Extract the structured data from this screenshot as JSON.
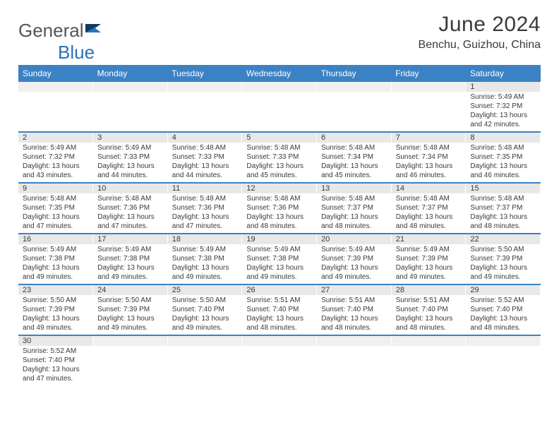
{
  "brand": {
    "text1": "General",
    "text2": "Blue"
  },
  "title": "June 2024",
  "subtitle": "Benchu, Guizhou, China",
  "header_bg": "#3b82c4",
  "header_text_color": "#ffffff",
  "numrow_bg": "#e8e8e8",
  "divider_color": "#3b82c4",
  "text_color": "#3a3a3a",
  "cell_fontsize": 10,
  "daynum_fontsize": 11,
  "header_fontsize": 12,
  "title_fontsize": 30,
  "subtitle_fontsize": 16,
  "columns": [
    "Sunday",
    "Monday",
    "Tuesday",
    "Wednesday",
    "Thursday",
    "Friday",
    "Saturday"
  ],
  "weeks": [
    [
      null,
      null,
      null,
      null,
      null,
      null,
      {
        "n": "1",
        "sr": "5:49 AM",
        "ss": "7:32 PM",
        "dl": "13 hours and 42 minutes."
      }
    ],
    [
      {
        "n": "2",
        "sr": "5:49 AM",
        "ss": "7:32 PM",
        "dl": "13 hours and 43 minutes."
      },
      {
        "n": "3",
        "sr": "5:49 AM",
        "ss": "7:33 PM",
        "dl": "13 hours and 44 minutes."
      },
      {
        "n": "4",
        "sr": "5:48 AM",
        "ss": "7:33 PM",
        "dl": "13 hours and 44 minutes."
      },
      {
        "n": "5",
        "sr": "5:48 AM",
        "ss": "7:33 PM",
        "dl": "13 hours and 45 minutes."
      },
      {
        "n": "6",
        "sr": "5:48 AM",
        "ss": "7:34 PM",
        "dl": "13 hours and 45 minutes."
      },
      {
        "n": "7",
        "sr": "5:48 AM",
        "ss": "7:34 PM",
        "dl": "13 hours and 46 minutes."
      },
      {
        "n": "8",
        "sr": "5:48 AM",
        "ss": "7:35 PM",
        "dl": "13 hours and 46 minutes."
      }
    ],
    [
      {
        "n": "9",
        "sr": "5:48 AM",
        "ss": "7:35 PM",
        "dl": "13 hours and 47 minutes."
      },
      {
        "n": "10",
        "sr": "5:48 AM",
        "ss": "7:36 PM",
        "dl": "13 hours and 47 minutes."
      },
      {
        "n": "11",
        "sr": "5:48 AM",
        "ss": "7:36 PM",
        "dl": "13 hours and 47 minutes."
      },
      {
        "n": "12",
        "sr": "5:48 AM",
        "ss": "7:36 PM",
        "dl": "13 hours and 48 minutes."
      },
      {
        "n": "13",
        "sr": "5:48 AM",
        "ss": "7:37 PM",
        "dl": "13 hours and 48 minutes."
      },
      {
        "n": "14",
        "sr": "5:48 AM",
        "ss": "7:37 PM",
        "dl": "13 hours and 48 minutes."
      },
      {
        "n": "15",
        "sr": "5:48 AM",
        "ss": "7:37 PM",
        "dl": "13 hours and 48 minutes."
      }
    ],
    [
      {
        "n": "16",
        "sr": "5:49 AM",
        "ss": "7:38 PM",
        "dl": "13 hours and 49 minutes."
      },
      {
        "n": "17",
        "sr": "5:49 AM",
        "ss": "7:38 PM",
        "dl": "13 hours and 49 minutes."
      },
      {
        "n": "18",
        "sr": "5:49 AM",
        "ss": "7:38 PM",
        "dl": "13 hours and 49 minutes."
      },
      {
        "n": "19",
        "sr": "5:49 AM",
        "ss": "7:38 PM",
        "dl": "13 hours and 49 minutes."
      },
      {
        "n": "20",
        "sr": "5:49 AM",
        "ss": "7:39 PM",
        "dl": "13 hours and 49 minutes."
      },
      {
        "n": "21",
        "sr": "5:49 AM",
        "ss": "7:39 PM",
        "dl": "13 hours and 49 minutes."
      },
      {
        "n": "22",
        "sr": "5:50 AM",
        "ss": "7:39 PM",
        "dl": "13 hours and 49 minutes."
      }
    ],
    [
      {
        "n": "23",
        "sr": "5:50 AM",
        "ss": "7:39 PM",
        "dl": "13 hours and 49 minutes."
      },
      {
        "n": "24",
        "sr": "5:50 AM",
        "ss": "7:39 PM",
        "dl": "13 hours and 49 minutes."
      },
      {
        "n": "25",
        "sr": "5:50 AM",
        "ss": "7:40 PM",
        "dl": "13 hours and 49 minutes."
      },
      {
        "n": "26",
        "sr": "5:51 AM",
        "ss": "7:40 PM",
        "dl": "13 hours and 48 minutes."
      },
      {
        "n": "27",
        "sr": "5:51 AM",
        "ss": "7:40 PM",
        "dl": "13 hours and 48 minutes."
      },
      {
        "n": "28",
        "sr": "5:51 AM",
        "ss": "7:40 PM",
        "dl": "13 hours and 48 minutes."
      },
      {
        "n": "29",
        "sr": "5:52 AM",
        "ss": "7:40 PM",
        "dl": "13 hours and 48 minutes."
      }
    ],
    [
      {
        "n": "30",
        "sr": "5:52 AM",
        "ss": "7:40 PM",
        "dl": "13 hours and 47 minutes."
      },
      null,
      null,
      null,
      null,
      null,
      null
    ]
  ],
  "labels": {
    "sunrise": "Sunrise:",
    "sunset": "Sunset:",
    "daylight": "Daylight:"
  }
}
